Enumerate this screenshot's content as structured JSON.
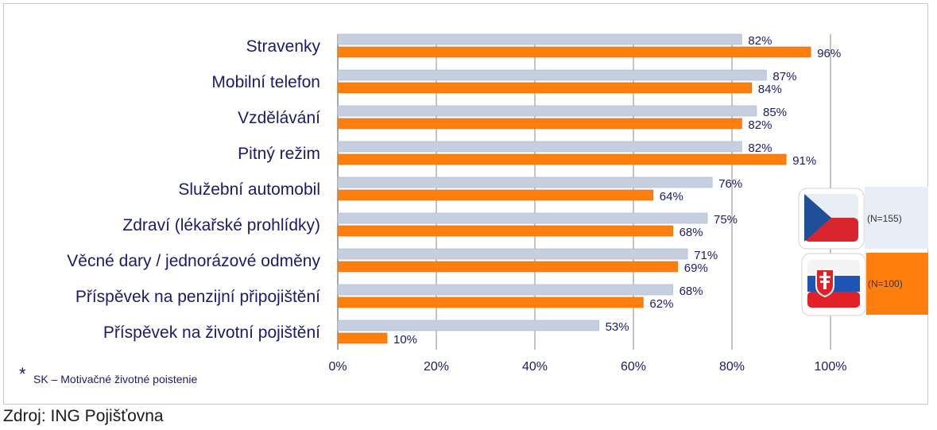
{
  "chart_data": {
    "type": "bar",
    "orientation": "horizontal",
    "categories": [
      "Stravenky",
      "Mobilní telefon",
      "Vzdělávání",
      "Pitný režim",
      "Služební automobil",
      "Zdraví (lékařské prohlídky)",
      "Věcné dary / jednorázové odměny",
      "Příspěvek na penzijní připojištění",
      "Příspěvek na životní pojištění"
    ],
    "series": [
      {
        "color": "#c5cfe0",
        "values": [
          82,
          87,
          85,
          82,
          76,
          75,
          71,
          68,
          53
        ]
      },
      {
        "color": "#ff7f0e",
        "values": [
          96,
          84,
          82,
          91,
          64,
          68,
          69,
          62,
          10
        ]
      }
    ],
    "xlim": [
      0,
      100
    ],
    "xticks": [
      0,
      20,
      40,
      60,
      80,
      100
    ],
    "value_suffix": "%",
    "grid": true,
    "legend": [
      {
        "label": "(N=155)",
        "flag": "czech-flag-icon",
        "swatch": "#e8eef8"
      },
      {
        "label": "(N=100)",
        "flag": "slovak-flag-icon",
        "swatch": "#ff7f0e"
      }
    ],
    "legend_position": "right"
  },
  "footnote": {
    "marker": "*",
    "text": "SK – Motivačné životné poistenie"
  },
  "source": "Zdroj: ING Pojišťovna"
}
